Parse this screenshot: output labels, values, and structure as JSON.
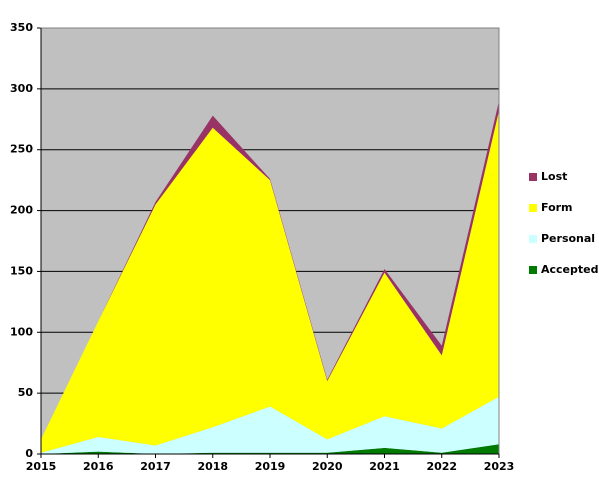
{
  "chart_data": {
    "type": "stacked_area",
    "x": [
      2015,
      2016,
      2017,
      2018,
      2019,
      2020,
      2021,
      2022,
      2023
    ],
    "xlim": [
      2015,
      2023
    ],
    "xticks": [
      2015,
      2016,
      2017,
      2018,
      2019,
      2020,
      2021,
      2022,
      2023
    ],
    "ylim": [
      0,
      350
    ],
    "yticks": [
      0,
      50,
      100,
      150,
      200,
      250,
      300,
      350
    ],
    "grid": true,
    "legend": "right",
    "series": [
      {
        "name": "Accepted",
        "color": "#007a00",
        "values": [
          0,
          2,
          0,
          1,
          1,
          1,
          5,
          1,
          8
        ]
      },
      {
        "name": "Personal",
        "color": "#ccffff",
        "values": [
          1,
          12,
          7,
          21,
          38,
          11,
          26,
          20,
          39
        ]
      },
      {
        "name": "Form",
        "color": "#ffff00",
        "values": [
          11,
          95,
          198,
          246,
          186,
          48,
          118,
          60,
          235
        ]
      },
      {
        "name": "Lost",
        "color": "#993366",
        "values": [
          0,
          0,
          2,
          10,
          1,
          1,
          3,
          8,
          8
        ]
      }
    ]
  }
}
